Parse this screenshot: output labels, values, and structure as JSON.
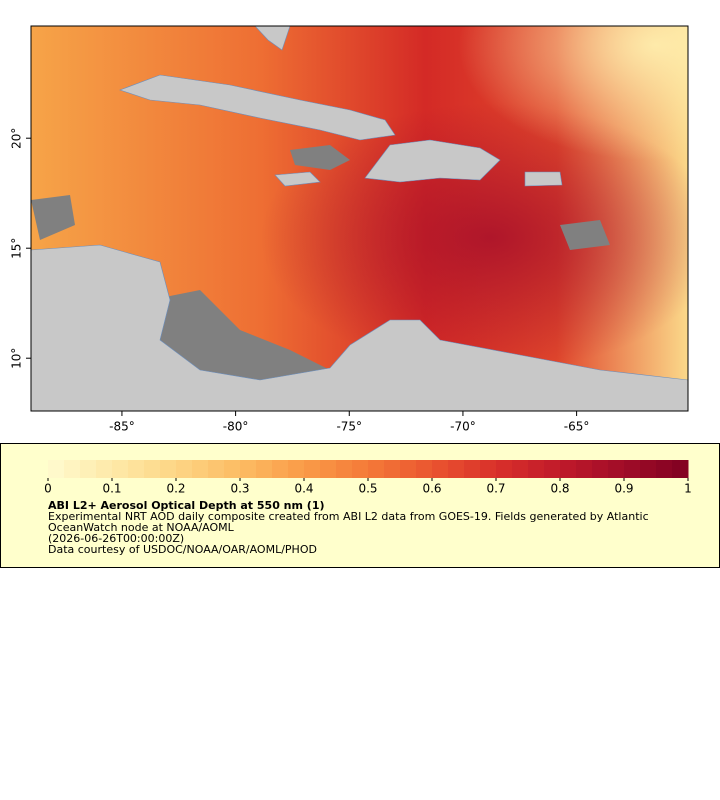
{
  "map": {
    "xlim": [
      -89,
      -60.1
    ],
    "ylim": [
      7.6,
      25.1
    ],
    "xticks": [
      {
        "value": -85,
        "label": "-85°"
      },
      {
        "value": -80,
        "label": "-80°"
      },
      {
        "value": -75,
        "label": "-75°"
      },
      {
        "value": -70,
        "label": "-70°"
      },
      {
        "value": -65,
        "label": "-65°"
      }
    ],
    "yticks": [
      {
        "value": 10,
        "label": "10°"
      },
      {
        "value": 15,
        "label": "15°"
      },
      {
        "value": 20,
        "label": "20°"
      }
    ]
  },
  "colorbar": {
    "lim": [
      0,
      1
    ],
    "ticks": [
      0,
      0.1,
      0.2,
      0.3,
      0.4,
      0.5,
      0.6,
      0.7,
      0.8,
      0.9,
      1
    ]
  },
  "legend": {
    "title": "ABI L2+ Aerosol Optical Depth at 550 nm (1)",
    "lines": [
      "Experimental NRT AOD daily composite created from ABI L2 data from GOES-19. Fields generated by Atlantic OceanWatch node at NOAA/AOML",
      "(2026-06-26T00:00:00Z)",
      "Data courtesy of USDOC/NOAA/OAR/AOML/PHOD"
    ]
  }
}
